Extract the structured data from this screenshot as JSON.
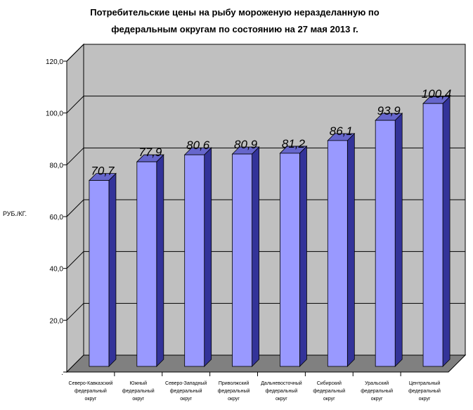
{
  "chart_data": {
    "type": "bar",
    "title_lines": [
      "Потребительские цены на рыбу мороженую неразделанную по",
      "федеральным округам по состоянию на 27 мая 2013 г."
    ],
    "ylabel": "РУБ./КГ.",
    "xlabel": "",
    "ylim": [
      0,
      120
    ],
    "y_ticks": [
      0,
      20,
      40,
      60,
      80,
      100,
      120
    ],
    "y_tick_labels": [
      ".",
      "20,0",
      "40,0",
      "60,0",
      "80,0",
      "100,0",
      "120,0"
    ],
    "grid": true,
    "categories": [
      [
        "Северо-Кавказский",
        "федеральный",
        "округ"
      ],
      [
        "Южный",
        "федеральный",
        "округ"
      ],
      [
        "Северо-Западный",
        "федеральный",
        "округ"
      ],
      [
        "Приволжский",
        "федеральный",
        "округ"
      ],
      [
        "Дальневосточный",
        "федеральный",
        "округ"
      ],
      [
        "Сибирский",
        "федеральный",
        "округ"
      ],
      [
        "Уральский",
        "федеральный",
        "округ"
      ],
      [
        "Центральный",
        "федеральный",
        "округ"
      ]
    ],
    "values": [
      70.7,
      77.9,
      80.6,
      80.9,
      81.2,
      86.1,
      93.9,
      100.4
    ],
    "value_labels": [
      "70,7",
      "77,9",
      "80,6",
      "80,9",
      "81,2",
      "86,1",
      "93,9",
      "100,4"
    ],
    "colors": {
      "bar_front": "#9999ff",
      "bar_side": "#333399",
      "bar_top": "#6666cc",
      "wall": "#c0c0c0",
      "floor": "#808080"
    }
  }
}
